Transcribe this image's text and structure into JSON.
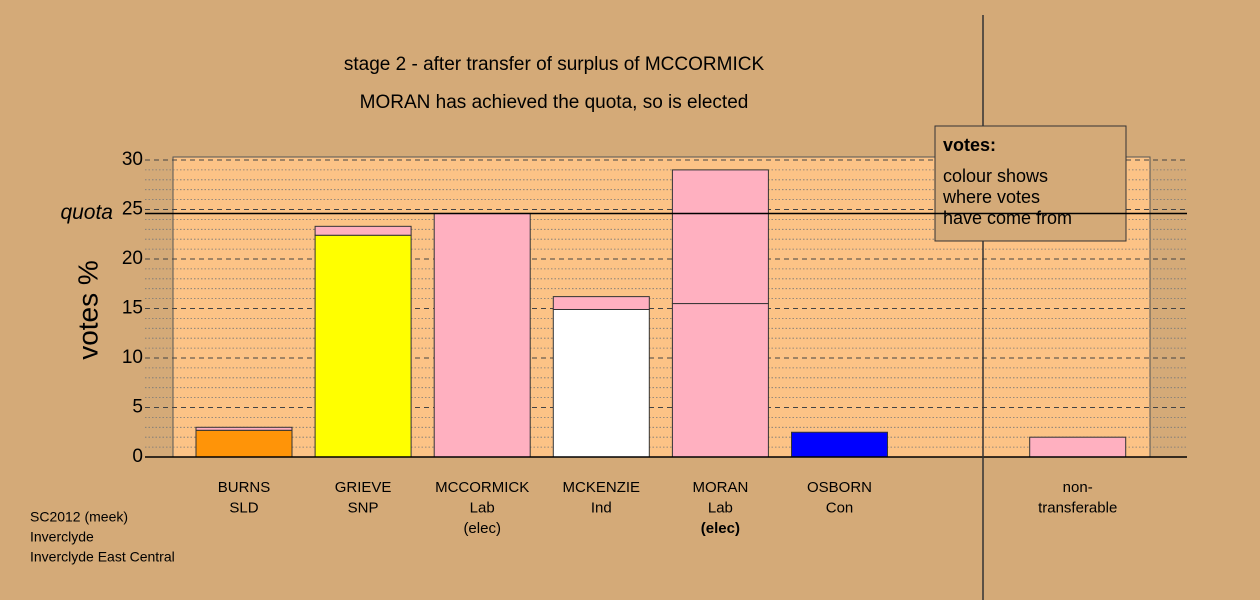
{
  "chart_data": {
    "type": "stacked_bar",
    "title": "stage 2 - after transfer of surplus of MCCORMICK",
    "subtitle": "MORAN has achieved the quota, so is elected",
    "y_label": "votes %",
    "categories": [
      [
        "BURNS",
        "SLD"
      ],
      [
        "GRIEVE",
        "SNP"
      ],
      [
        "MCCORMICK",
        "Lab",
        "(elec)"
      ],
      [
        "MCKENZIE",
        "Ind"
      ],
      [
        "MORAN",
        "Lab",
        "(elec)"
      ],
      [
        "OSBORN",
        "Con"
      ],
      [
        "non-",
        "transferable"
      ]
    ],
    "series": [
      {
        "colors": [
          "#ff9408",
          "#ffff00",
          "#ffb0c0",
          "#ffffff",
          "#ffb0c0",
          "#0000ff",
          "#ffb0c0"
        ],
        "values": [
          2.7,
          22.4,
          24.6,
          14.9,
          15.5,
          2.5,
          2.0
        ]
      },
      {
        "color": "#ffb0c0",
        "values": [
          0.3,
          0.9,
          null,
          1.3,
          13.5,
          null,
          null
        ]
      }
    ],
    "quota": {
      "label": "quota",
      "value": 24.6
    },
    "ylim": [
      0,
      30
    ],
    "yticks": [
      0,
      5,
      10,
      15,
      20,
      25,
      30
    ],
    "minor_ytick_step": 1,
    "grid": true,
    "legend": {
      "title": "votes:",
      "lines": [
        "colour shows",
        "where votes",
        "have come from"
      ]
    },
    "footer": [
      "SC2012 (meek)",
      "Inverclyde",
      "Inverclyde East Central"
    ]
  }
}
